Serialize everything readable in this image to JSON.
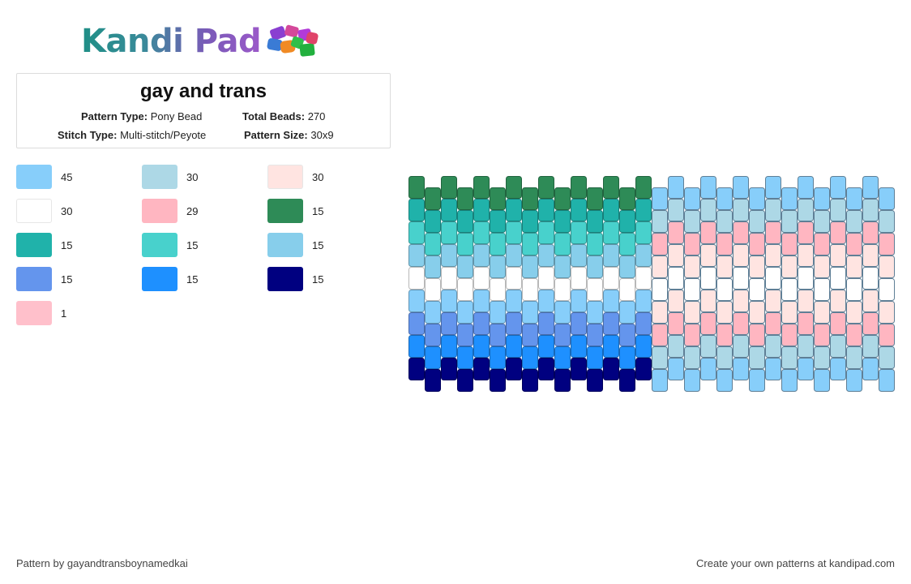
{
  "brand": {
    "name": "Kandi Pad",
    "text_colors": [
      "#1f8f86",
      "#9b59c9"
    ]
  },
  "pattern": {
    "title": "gay and trans",
    "type_label": "Pattern Type:",
    "type_value": "Pony Bead",
    "beads_label": "Total Beads:",
    "beads_value": "270",
    "stitch_label": "Stitch Type:",
    "stitch_value": "Multi-stitch/Peyote",
    "size_label": "Pattern Size:",
    "size_value": "30x9"
  },
  "palette": [
    {
      "color": "#87cefa",
      "count": "45"
    },
    {
      "color": "#add8e6",
      "count": "30"
    },
    {
      "color": "#ffe4e1",
      "count": "30"
    },
    {
      "color": "#ffffff",
      "count": "30"
    },
    {
      "color": "#ffb6c1",
      "count": "29"
    },
    {
      "color": "#2e8b57",
      "count": "15"
    },
    {
      "color": "#20b2aa",
      "count": "15"
    },
    {
      "color": "#48d1cc",
      "count": "15"
    },
    {
      "color": "#87ceeb",
      "count": "15"
    },
    {
      "color": "#6495ed",
      "count": "15"
    },
    {
      "color": "#1e90ff",
      "count": "15"
    },
    {
      "color": "#000080",
      "count": "15"
    },
    {
      "color": "#ffc0cb",
      "count": "1"
    }
  ],
  "bead_pattern": {
    "columns": 30,
    "rows": 9,
    "left_half_rows": [
      "#2e8b57",
      "#20b2aa",
      "#48d1cc",
      "#87ceeb",
      "#ffffff",
      "#87cefa",
      "#6495ed",
      "#1e90ff",
      "#000080"
    ],
    "right_half_rows": [
      "#87cefa",
      "#add8e6",
      "#ffb6c1",
      "#ffe4e1",
      "#ffffff",
      "#ffe4e1",
      "#ffb6c1",
      "#add8e6",
      "#87cefa"
    ]
  },
  "footer": {
    "credit": "Pattern by gayandtransboynamedkai",
    "cta": "Create your own patterns at kandipad.com"
  }
}
